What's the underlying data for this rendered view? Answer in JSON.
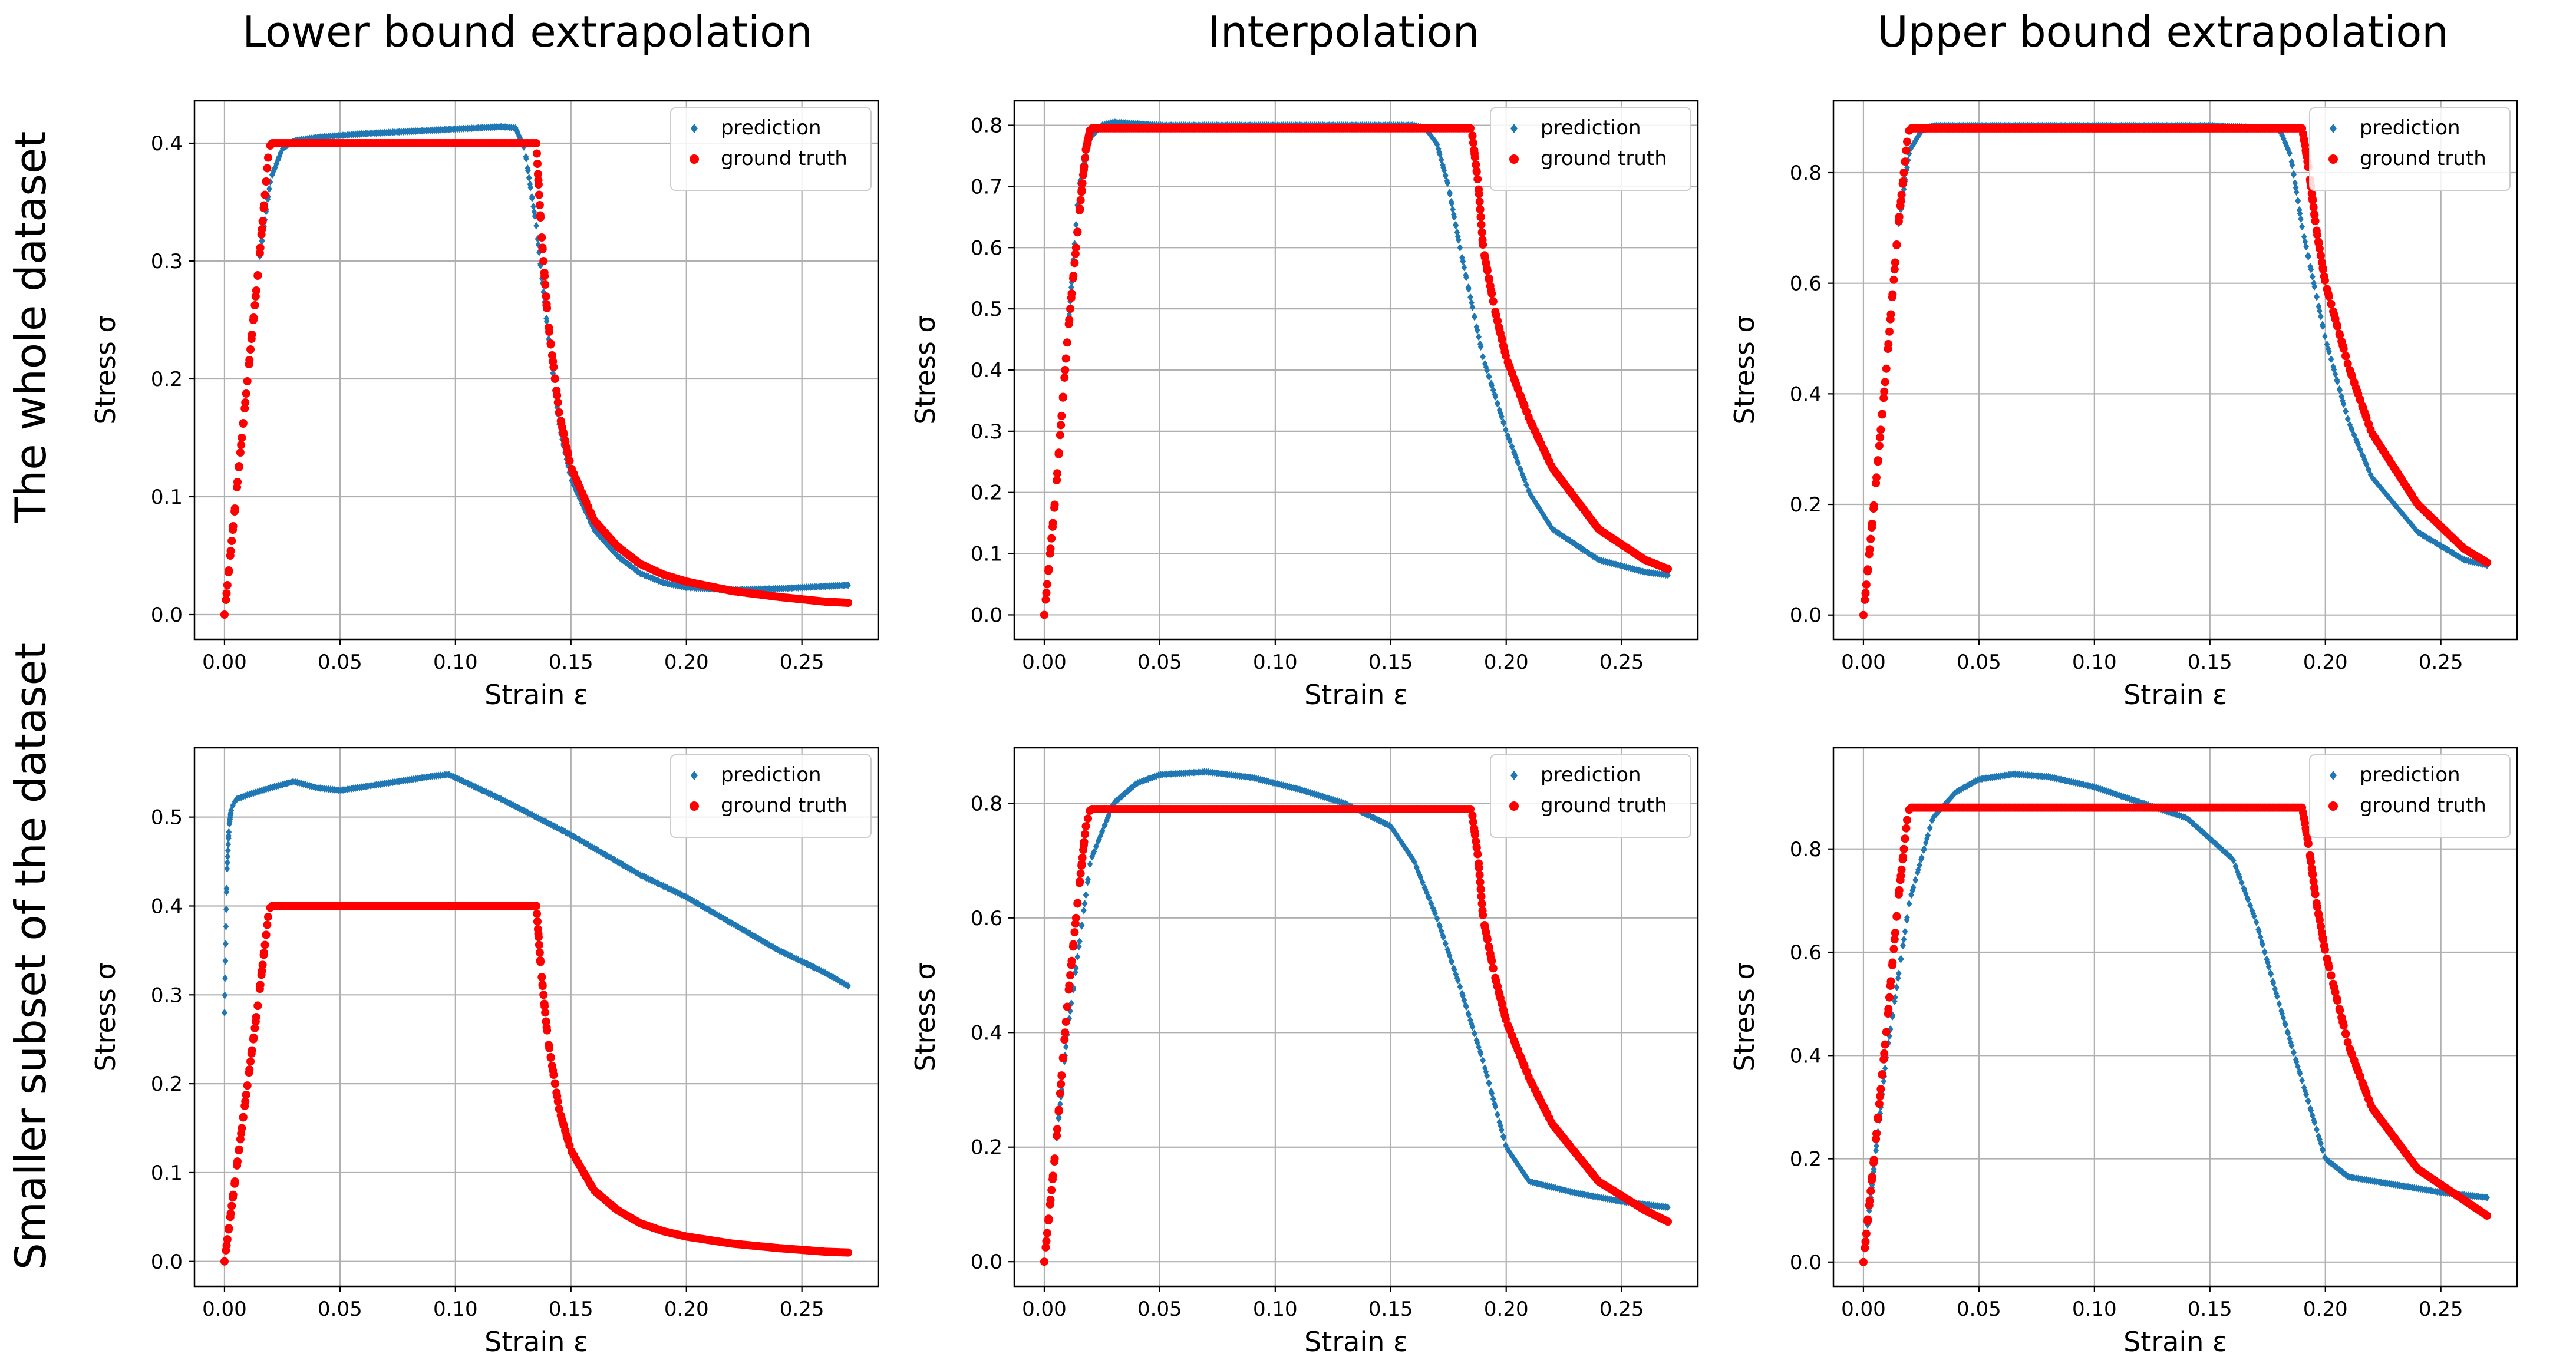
{
  "figure": {
    "column_titles": [
      "Lower bound extrapolation",
      "Interpolation",
      "Upper bound extrapolation"
    ],
    "row_titles": [
      "The whole dataset",
      "Smaller subset of the dataset"
    ]
  },
  "colors": {
    "prediction": "#1f77b4",
    "ground_truth": "#ff0000"
  },
  "chart_data": [
    {
      "type": "scatter",
      "row": "The whole dataset",
      "column": "Lower bound extrapolation",
      "xlabel": "Strain ε",
      "ylabel": "Stress σ",
      "grid": true,
      "legend_position": "top-right",
      "xlim": [
        -0.013,
        0.283
      ],
      "ylim": [
        -0.021,
        0.436
      ],
      "xticks": [
        0.0,
        0.05,
        0.1,
        0.15,
        0.2,
        0.25
      ],
      "xtick_labels": [
        "0.00",
        "0.05",
        "0.10",
        "0.15",
        "0.20",
        "0.25"
      ],
      "yticks": [
        0.0,
        0.1,
        0.2,
        0.3,
        0.4
      ],
      "ytick_labels": [
        "0.0",
        "0.1",
        "0.2",
        "0.3",
        "0.4"
      ],
      "series": [
        {
          "name": "prediction",
          "marker": "diamond",
          "x": [
            0,
            0.005,
            0.01,
            0.015,
            0.02,
            0.025,
            0.03,
            0.04,
            0.06,
            0.08,
            0.1,
            0.12,
            0.126,
            0.13,
            0.135,
            0.14,
            0.145,
            0.15,
            0.16,
            0.17,
            0.18,
            0.19,
            0.2,
            0.22,
            0.24,
            0.26,
            0.27
          ],
          "y": [
            0.0,
            0.1,
            0.2,
            0.3,
            0.37,
            0.395,
            0.402,
            0.405,
            0.408,
            0.41,
            0.412,
            0.414,
            0.413,
            0.395,
            0.33,
            0.24,
            0.16,
            0.115,
            0.072,
            0.05,
            0.035,
            0.027,
            0.023,
            0.021,
            0.022,
            0.024,
            0.025
          ]
        },
        {
          "name": "ground truth",
          "marker": "circle",
          "x": [
            0,
            0.005,
            0.01,
            0.015,
            0.019,
            0.02,
            0.06,
            0.1,
            0.135,
            0.137,
            0.14,
            0.145,
            0.15,
            0.16,
            0.17,
            0.18,
            0.19,
            0.2,
            0.22,
            0.24,
            0.26,
            0.27
          ],
          "y": [
            0.0,
            0.1,
            0.2,
            0.3,
            0.39,
            0.4,
            0.4,
            0.4,
            0.4,
            0.33,
            0.25,
            0.17,
            0.125,
            0.08,
            0.058,
            0.043,
            0.034,
            0.028,
            0.02,
            0.015,
            0.011,
            0.01
          ]
        }
      ]
    },
    {
      "type": "scatter",
      "row": "The whole dataset",
      "column": "Interpolation",
      "xlabel": "Strain ε",
      "ylabel": "Stress σ",
      "grid": true,
      "legend_position": "top-right",
      "xlim": [
        -0.013,
        0.283
      ],
      "ylim": [
        -0.04,
        0.84
      ],
      "xticks": [
        0.0,
        0.05,
        0.1,
        0.15,
        0.2,
        0.25
      ],
      "xtick_labels": [
        "0.00",
        "0.05",
        "0.10",
        "0.15",
        "0.20",
        "0.25"
      ],
      "yticks": [
        0.0,
        0.1,
        0.2,
        0.3,
        0.4,
        0.5,
        0.6,
        0.7,
        0.8
      ],
      "ytick_labels": [
        "0.0",
        "0.1",
        "0.2",
        "0.3",
        "0.4",
        "0.5",
        "0.6",
        "0.7",
        "0.8"
      ],
      "series": [
        {
          "name": "prediction",
          "marker": "diamond",
          "x": [
            0,
            0.005,
            0.01,
            0.015,
            0.02,
            0.025,
            0.03,
            0.05,
            0.1,
            0.15,
            0.16,
            0.165,
            0.17,
            0.175,
            0.18,
            0.19,
            0.2,
            0.21,
            0.22,
            0.24,
            0.26,
            0.27
          ],
          "y": [
            0.0,
            0.2,
            0.45,
            0.7,
            0.78,
            0.8,
            0.805,
            0.8,
            0.8,
            0.8,
            0.8,
            0.795,
            0.77,
            0.7,
            0.6,
            0.42,
            0.3,
            0.2,
            0.14,
            0.09,
            0.07,
            0.065
          ]
        },
        {
          "name": "ground truth",
          "marker": "circle",
          "x": [
            0,
            0.005,
            0.01,
            0.015,
            0.018,
            0.02,
            0.05,
            0.1,
            0.15,
            0.185,
            0.188,
            0.19,
            0.195,
            0.2,
            0.21,
            0.22,
            0.24,
            0.26,
            0.27
          ],
          "y": [
            0.0,
            0.2,
            0.45,
            0.65,
            0.76,
            0.795,
            0.795,
            0.795,
            0.795,
            0.795,
            0.7,
            0.6,
            0.5,
            0.42,
            0.32,
            0.24,
            0.14,
            0.09,
            0.075
          ]
        }
      ]
    },
    {
      "type": "scatter",
      "row": "The whole dataset",
      "column": "Upper bound extrapolation",
      "xlabel": "Strain ε",
      "ylabel": "Stress σ",
      "grid": true,
      "legend_position": "top-right",
      "xlim": [
        -0.013,
        0.283
      ],
      "ylim": [
        -0.044,
        0.93
      ],
      "xticks": [
        0.0,
        0.05,
        0.1,
        0.15,
        0.2,
        0.25
      ],
      "xtick_labels": [
        "0.00",
        "0.05",
        "0.10",
        "0.15",
        "0.20",
        "0.25"
      ],
      "yticks": [
        0.0,
        0.2,
        0.4,
        0.6,
        0.8
      ],
      "ytick_labels": [
        "0.0",
        "0.2",
        "0.4",
        "0.6",
        "0.8"
      ],
      "series": [
        {
          "name": "prediction",
          "marker": "diamond",
          "x": [
            0,
            0.005,
            0.01,
            0.015,
            0.02,
            0.025,
            0.03,
            0.06,
            0.1,
            0.15,
            0.18,
            0.185,
            0.19,
            0.2,
            0.21,
            0.22,
            0.24,
            0.26,
            0.27
          ],
          "y": [
            0.0,
            0.22,
            0.45,
            0.7,
            0.84,
            0.875,
            0.885,
            0.885,
            0.885,
            0.885,
            0.88,
            0.83,
            0.7,
            0.5,
            0.35,
            0.25,
            0.15,
            0.1,
            0.09
          ]
        },
        {
          "name": "ground truth",
          "marker": "circle",
          "x": [
            0,
            0.005,
            0.01,
            0.015,
            0.019,
            0.02,
            0.06,
            0.1,
            0.15,
            0.19,
            0.193,
            0.196,
            0.2,
            0.21,
            0.22,
            0.24,
            0.26,
            0.27
          ],
          "y": [
            0.0,
            0.22,
            0.45,
            0.7,
            0.86,
            0.88,
            0.88,
            0.88,
            0.88,
            0.88,
            0.8,
            0.7,
            0.6,
            0.45,
            0.33,
            0.2,
            0.12,
            0.095
          ]
        }
      ]
    },
    {
      "type": "scatter",
      "row": "Smaller subset of the dataset",
      "column": "Lower bound extrapolation",
      "xlabel": "Strain ε",
      "ylabel": "Stress σ",
      "grid": true,
      "legend_position": "top-right",
      "xlim": [
        -0.013,
        0.283
      ],
      "ylim": [
        -0.028,
        0.578
      ],
      "xticks": [
        0.0,
        0.05,
        0.1,
        0.15,
        0.2,
        0.25
      ],
      "xtick_labels": [
        "0.00",
        "0.05",
        "0.10",
        "0.15",
        "0.20",
        "0.25"
      ],
      "yticks": [
        0.0,
        0.1,
        0.2,
        0.3,
        0.4,
        0.5
      ],
      "ytick_labels": [
        "0.0",
        "0.1",
        "0.2",
        "0.3",
        "0.4",
        "0.5"
      ],
      "series": [
        {
          "name": "prediction",
          "marker": "diamond",
          "x": [
            0.0,
            0.001,
            0.002,
            0.003,
            0.005,
            0.01,
            0.02,
            0.03,
            0.04,
            0.05,
            0.07,
            0.09,
            0.097,
            0.12,
            0.15,
            0.18,
            0.2,
            0.22,
            0.24,
            0.26,
            0.27
          ],
          "y": [
            0.28,
            0.435,
            0.49,
            0.51,
            0.52,
            0.525,
            0.533,
            0.54,
            0.533,
            0.53,
            0.538,
            0.546,
            0.548,
            0.52,
            0.48,
            0.435,
            0.41,
            0.38,
            0.35,
            0.325,
            0.31
          ]
        },
        {
          "name": "ground truth",
          "marker": "circle",
          "x": [
            0,
            0.005,
            0.01,
            0.015,
            0.019,
            0.02,
            0.06,
            0.1,
            0.135,
            0.137,
            0.14,
            0.145,
            0.15,
            0.16,
            0.17,
            0.18,
            0.19,
            0.2,
            0.22,
            0.24,
            0.26,
            0.27
          ],
          "y": [
            0.0,
            0.1,
            0.2,
            0.3,
            0.39,
            0.4,
            0.4,
            0.4,
            0.4,
            0.33,
            0.25,
            0.17,
            0.125,
            0.08,
            0.058,
            0.043,
            0.034,
            0.028,
            0.02,
            0.015,
            0.011,
            0.01
          ]
        }
      ]
    },
    {
      "type": "scatter",
      "row": "Smaller subset of the dataset",
      "column": "Interpolation",
      "xlabel": "Strain ε",
      "ylabel": "Stress σ",
      "grid": true,
      "legend_position": "top-right",
      "xlim": [
        -0.013,
        0.283
      ],
      "ylim": [
        -0.043,
        0.897
      ],
      "xticks": [
        0.0,
        0.05,
        0.1,
        0.15,
        0.2,
        0.25
      ],
      "xtick_labels": [
        "0.00",
        "0.05",
        "0.10",
        "0.15",
        "0.20",
        "0.25"
      ],
      "yticks": [
        0.0,
        0.2,
        0.4,
        0.6,
        0.8
      ],
      "ytick_labels": [
        "0.0",
        "0.2",
        "0.4",
        "0.6",
        "0.8"
      ],
      "series": [
        {
          "name": "prediction",
          "marker": "diamond",
          "x": [
            0,
            0.005,
            0.01,
            0.02,
            0.03,
            0.04,
            0.05,
            0.07,
            0.09,
            0.11,
            0.13,
            0.15,
            0.16,
            0.17,
            0.18,
            0.19,
            0.2,
            0.21,
            0.23,
            0.25,
            0.27
          ],
          "y": [
            0.0,
            0.2,
            0.4,
            0.7,
            0.8,
            0.835,
            0.85,
            0.855,
            0.845,
            0.825,
            0.8,
            0.76,
            0.7,
            0.6,
            0.48,
            0.35,
            0.2,
            0.14,
            0.12,
            0.105,
            0.095
          ]
        },
        {
          "name": "ground truth",
          "marker": "circle",
          "x": [
            0,
            0.005,
            0.01,
            0.015,
            0.018,
            0.02,
            0.05,
            0.1,
            0.15,
            0.185,
            0.188,
            0.19,
            0.195,
            0.2,
            0.21,
            0.22,
            0.24,
            0.26,
            0.27
          ],
          "y": [
            0.0,
            0.2,
            0.45,
            0.65,
            0.76,
            0.79,
            0.79,
            0.79,
            0.79,
            0.79,
            0.7,
            0.6,
            0.5,
            0.42,
            0.32,
            0.24,
            0.14,
            0.09,
            0.07
          ]
        }
      ]
    },
    {
      "type": "scatter",
      "row": "Smaller subset of the dataset",
      "column": "Upper bound extrapolation",
      "xlabel": "Strain ε",
      "ylabel": "Stress σ",
      "grid": true,
      "legend_position": "top-right",
      "xlim": [
        -0.013,
        0.283
      ],
      "ylim": [
        -0.047,
        0.996
      ],
      "xticks": [
        0.0,
        0.05,
        0.1,
        0.15,
        0.2,
        0.25
      ],
      "xtick_labels": [
        "0.00",
        "0.05",
        "0.10",
        "0.15",
        "0.20",
        "0.25"
      ],
      "yticks": [
        0.0,
        0.2,
        0.4,
        0.6,
        0.8
      ],
      "ytick_labels": [
        "0.0",
        "0.2",
        "0.4",
        "0.6",
        "0.8"
      ],
      "series": [
        {
          "name": "prediction",
          "marker": "diamond",
          "x": [
            0,
            0.005,
            0.01,
            0.02,
            0.03,
            0.04,
            0.05,
            0.065,
            0.08,
            0.1,
            0.12,
            0.14,
            0.16,
            0.17,
            0.18,
            0.19,
            0.2,
            0.21,
            0.23,
            0.25,
            0.27
          ],
          "y": [
            0.0,
            0.2,
            0.4,
            0.7,
            0.86,
            0.91,
            0.935,
            0.945,
            0.94,
            0.92,
            0.89,
            0.86,
            0.78,
            0.66,
            0.5,
            0.35,
            0.2,
            0.165,
            0.15,
            0.135,
            0.125
          ]
        },
        {
          "name": "ground truth",
          "marker": "circle",
          "x": [
            0,
            0.005,
            0.01,
            0.015,
            0.019,
            0.02,
            0.06,
            0.1,
            0.15,
            0.19,
            0.193,
            0.196,
            0.2,
            0.21,
            0.22,
            0.24,
            0.26,
            0.27
          ],
          "y": [
            0.0,
            0.22,
            0.45,
            0.7,
            0.86,
            0.88,
            0.88,
            0.88,
            0.88,
            0.88,
            0.8,
            0.7,
            0.6,
            0.42,
            0.3,
            0.18,
            0.12,
            0.09
          ]
        }
      ]
    }
  ]
}
